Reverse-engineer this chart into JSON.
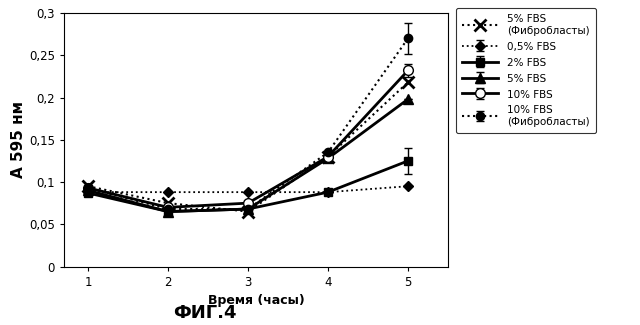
{
  "x": [
    1,
    2,
    3,
    4,
    5
  ],
  "series_order": [
    "0.5% FBS",
    "2% FBS",
    "5% FBS",
    "10% FBS",
    "5% FBS Fibro",
    "10% FBS Fibro"
  ],
  "series": {
    "0.5% FBS": {
      "y": [
        0.088,
        0.088,
        0.088,
        0.088,
        0.095
      ],
      "yerr": [
        0.0,
        0.0,
        0.0,
        0.0,
        0.0
      ],
      "linestyle": "dotted",
      "marker": "D",
      "linewidth": 1.3,
      "markersize": 5,
      "markerfacecolor": "black",
      "markeredgecolor": "black",
      "label": "0,5% FBS"
    },
    "2% FBS": {
      "y": [
        0.087,
        0.065,
        0.068,
        0.088,
        0.125
      ],
      "yerr": [
        0.0,
        0.0,
        0.0,
        0.0,
        0.015
      ],
      "linestyle": "solid",
      "marker": "s",
      "linewidth": 2.0,
      "markersize": 6,
      "markerfacecolor": "black",
      "markeredgecolor": "black",
      "label": "2% FBS"
    },
    "5% FBS": {
      "y": [
        0.09,
        0.065,
        0.068,
        0.128,
        0.198
      ],
      "yerr": [
        0.0,
        0.0,
        0.0,
        0.0,
        0.0
      ],
      "linestyle": "solid",
      "marker": "^",
      "linewidth": 2.0,
      "markersize": 7,
      "markerfacecolor": "black",
      "markeredgecolor": "black",
      "label": "5% FBS"
    },
    "10% FBS": {
      "y": [
        0.093,
        0.07,
        0.075,
        0.13,
        0.232
      ],
      "yerr": [
        0.0,
        0.0,
        0.0,
        0.005,
        0.008
      ],
      "linestyle": "solid",
      "marker": "o",
      "linewidth": 2.0,
      "markersize": 7,
      "markerfacecolor": "white",
      "markeredgecolor": "black",
      "label": "10% FBS"
    },
    "5% FBS Fibro": {
      "y": [
        0.095,
        0.075,
        0.065,
        0.13,
        0.218
      ],
      "yerr": [
        0.0,
        0.0,
        0.0,
        0.0,
        0.0
      ],
      "linestyle": "dotted",
      "marker": "x",
      "linewidth": 1.5,
      "markersize": 8,
      "markerfacecolor": "black",
      "markeredgecolor": "black",
      "markeredgewidth": 2.0,
      "label": "5% FBS\n(Фибробласты)"
    },
    "10% FBS Fibro": {
      "y": [
        0.093,
        0.068,
        0.068,
        0.135,
        0.27
      ],
      "yerr": [
        0.0,
        0.0,
        0.0,
        0.0,
        0.018
      ],
      "linestyle": "dotted",
      "marker": "o",
      "linewidth": 1.5,
      "markersize": 6,
      "markerfacecolor": "black",
      "markeredgecolor": "black",
      "label": "10% FBS\n(Фибробласты)"
    }
  },
  "xlabel": "Время (часы)",
  "ylabel": "А 595 нм",
  "ylim": [
    0,
    0.3
  ],
  "xlim": [
    0.7,
    5.5
  ],
  "yticks": [
    0,
    0.05,
    0.1,
    0.15,
    0.2,
    0.25,
    0.3
  ],
  "ytick_labels": [
    "0",
    "0,05",
    "0,1",
    "0,15",
    "0,2",
    "0,25",
    "0,3"
  ],
  "xticks": [
    1,
    2,
    3,
    4,
    5
  ],
  "title": "ФИГ.4",
  "background_color": "#ffffff"
}
